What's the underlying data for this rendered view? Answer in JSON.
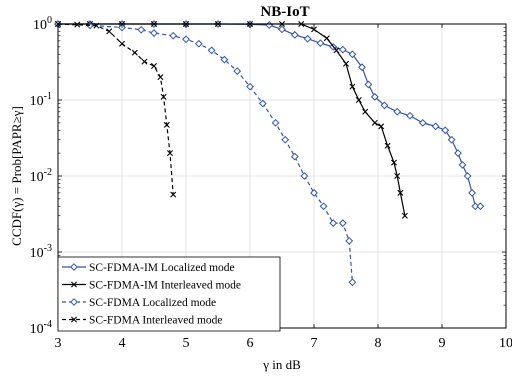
{
  "chart_data": {
    "type": "line",
    "title": "NB-IoT",
    "xlabel": "γ in dB",
    "ylabel": "CCDF(γ) = Prob[PAPR≥γ]",
    "xlim": [
      3,
      10
    ],
    "ylim": [
      0.0001,
      1
    ],
    "yscale": "log",
    "grid": true,
    "legend_position": "bottom-left",
    "x_ticks": [
      "3",
      "4",
      "5",
      "6",
      "7",
      "8",
      "9",
      "10"
    ],
    "y_ticks": [
      {
        "value": 1,
        "base": "10",
        "exp": "0"
      },
      {
        "value": 0.1,
        "base": "10",
        "exp": "-1"
      },
      {
        "value": 0.01,
        "base": "10",
        "exp": "-2"
      },
      {
        "value": 0.001,
        "base": "10",
        "exp": "-3"
      },
      {
        "value": 0.0001,
        "base": "10",
        "exp": "-4"
      }
    ],
    "series": [
      {
        "name": "SC-FDMA-IM Localized mode",
        "color": "#3355aa",
        "dash": "solid",
        "marker": "diamond",
        "points": [
          [
            3.0,
            1.0
          ],
          [
            3.5,
            1.0
          ],
          [
            4.0,
            1.0
          ],
          [
            4.5,
            1.0
          ],
          [
            5.0,
            1.0
          ],
          [
            5.5,
            1.0
          ],
          [
            6.0,
            0.99
          ],
          [
            6.3,
            0.97
          ],
          [
            6.5,
            0.85
          ],
          [
            6.7,
            0.72
          ],
          [
            6.9,
            0.64
          ],
          [
            7.1,
            0.56
          ],
          [
            7.3,
            0.5
          ],
          [
            7.45,
            0.46
          ],
          [
            7.6,
            0.4
          ],
          [
            7.75,
            0.27
          ],
          [
            7.85,
            0.16
          ],
          [
            7.95,
            0.11
          ],
          [
            8.1,
            0.085
          ],
          [
            8.3,
            0.07
          ],
          [
            8.5,
            0.062
          ],
          [
            8.7,
            0.05
          ],
          [
            8.9,
            0.045
          ],
          [
            9.05,
            0.04
          ],
          [
            9.15,
            0.03
          ],
          [
            9.25,
            0.02
          ],
          [
            9.32,
            0.014
          ],
          [
            9.4,
            0.01
          ],
          [
            9.47,
            0.006
          ],
          [
            9.52,
            0.004
          ],
          [
            9.6,
            0.004
          ]
        ]
      },
      {
        "name": "SC-FDMA-IM Interleaved mode",
        "color": "#000000",
        "dash": "solid",
        "marker": "x",
        "points": [
          [
            3.0,
            1.0
          ],
          [
            3.5,
            1.0
          ],
          [
            4.0,
            1.0
          ],
          [
            4.5,
            1.0
          ],
          [
            5.0,
            1.0
          ],
          [
            5.5,
            1.0
          ],
          [
            6.0,
            1.0
          ],
          [
            6.5,
            1.0
          ],
          [
            6.8,
            1.0
          ],
          [
            7.0,
            0.85
          ],
          [
            7.2,
            0.65
          ],
          [
            7.35,
            0.45
          ],
          [
            7.5,
            0.3
          ],
          [
            7.6,
            0.15
          ],
          [
            7.7,
            0.1
          ],
          [
            7.8,
            0.07
          ],
          [
            7.95,
            0.05
          ],
          [
            8.05,
            0.045
          ],
          [
            8.15,
            0.025
          ],
          [
            8.25,
            0.015
          ],
          [
            8.3,
            0.01
          ],
          [
            8.35,
            0.006
          ],
          [
            8.42,
            0.003
          ]
        ]
      },
      {
        "name": "SC-FDMA Localized mode",
        "color": "#3355aa",
        "dash": "dashed",
        "marker": "diamond",
        "points": [
          [
            3.0,
            1.0
          ],
          [
            3.5,
            0.96
          ],
          [
            4.0,
            0.9
          ],
          [
            4.3,
            0.84
          ],
          [
            4.5,
            0.76
          ],
          [
            4.8,
            0.7
          ],
          [
            5.0,
            0.63
          ],
          [
            5.2,
            0.55
          ],
          [
            5.4,
            0.45
          ],
          [
            5.6,
            0.34
          ],
          [
            5.8,
            0.24
          ],
          [
            6.0,
            0.15
          ],
          [
            6.2,
            0.09
          ],
          [
            6.4,
            0.05
          ],
          [
            6.55,
            0.03
          ],
          [
            6.7,
            0.018
          ],
          [
            6.85,
            0.01
          ],
          [
            7.0,
            0.006
          ],
          [
            7.15,
            0.004
          ],
          [
            7.3,
            0.0024
          ],
          [
            7.45,
            0.0024
          ],
          [
            7.55,
            0.0014
          ],
          [
            7.6,
            0.0004
          ]
        ]
      },
      {
        "name": "SC-FDMA Interleaved mode",
        "color": "#000000",
        "dash": "dashed",
        "marker": "x",
        "points": [
          [
            3.0,
            1.0
          ],
          [
            3.3,
            0.98
          ],
          [
            3.6,
            0.95
          ],
          [
            3.8,
            0.8
          ],
          [
            4.0,
            0.55
          ],
          [
            4.2,
            0.42
          ],
          [
            4.35,
            0.32
          ],
          [
            4.5,
            0.28
          ],
          [
            4.6,
            0.2
          ],
          [
            4.65,
            0.11
          ],
          [
            4.7,
            0.047
          ],
          [
            4.75,
            0.02
          ],
          [
            4.8,
            0.0057
          ]
        ]
      }
    ]
  }
}
